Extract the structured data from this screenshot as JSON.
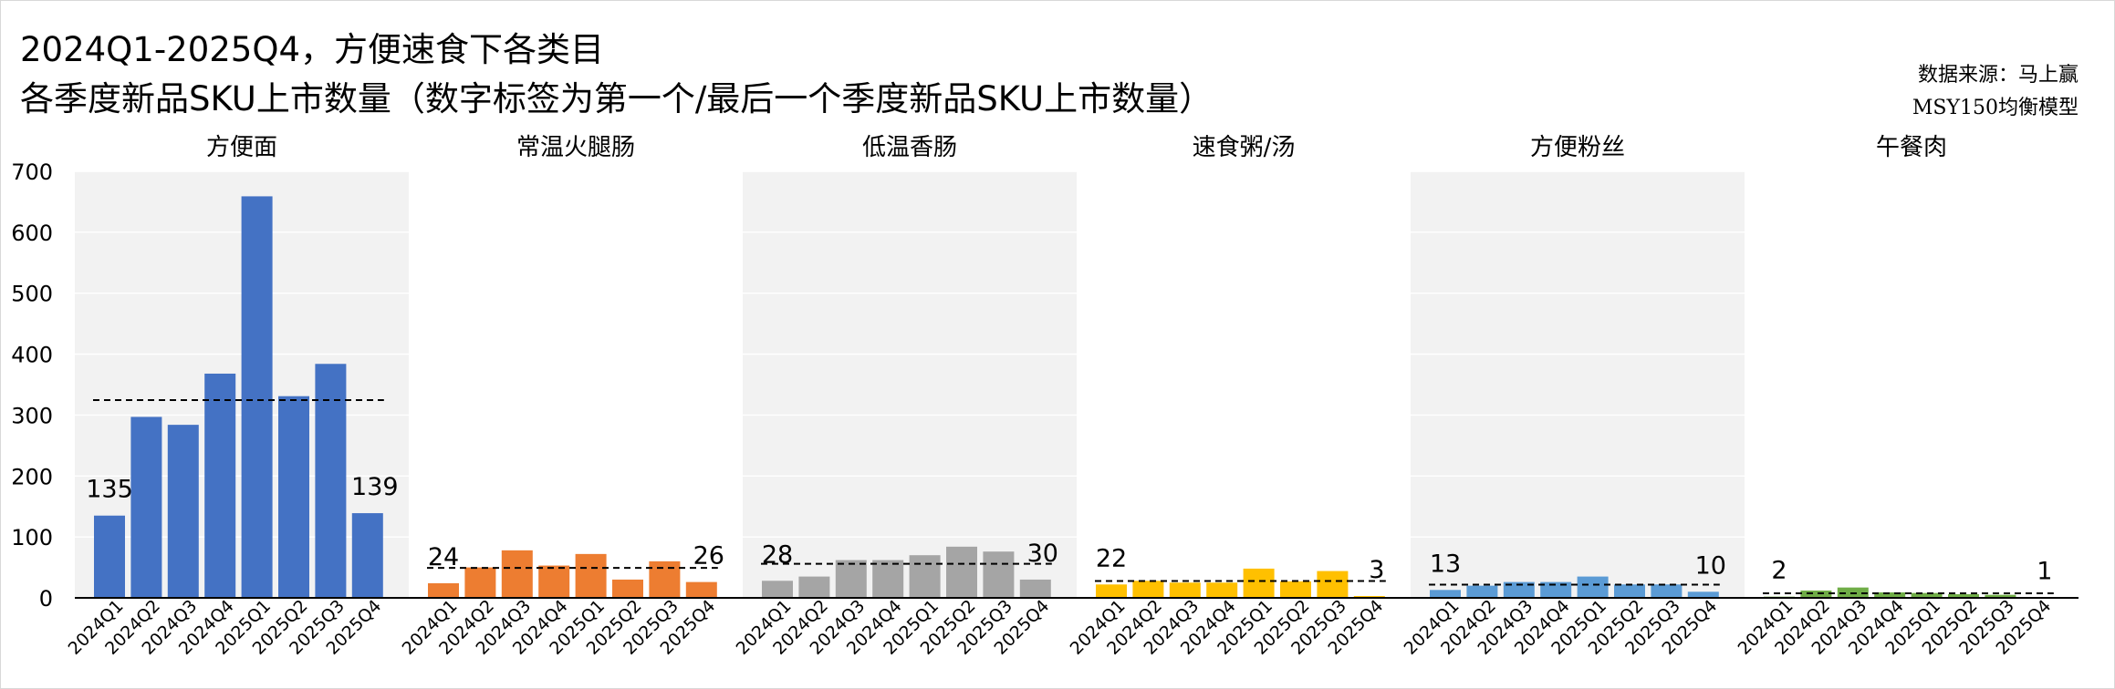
{
  "title_line1": "2024Q1-2025Q4，方便速食下各类目",
  "title_line2": "各季度新品SKU上市数量（数字标签为第一个/最后一个季度新品SKU上市数量）",
  "source_line1": "数据来源：马上赢",
  "source_line2": "MSY150均衡模型",
  "chart_data": {
    "type": "bar",
    "layout": "small-multiples",
    "ylim": [
      0,
      700
    ],
    "yticks": [
      0,
      100,
      200,
      300,
      400,
      500,
      600,
      700
    ],
    "categories": [
      "2024Q1",
      "2024Q2",
      "2024Q3",
      "2024Q4",
      "2025Q1",
      "2025Q2",
      "2025Q3",
      "2025Q4"
    ],
    "grid": true,
    "reference_line": "dashed mean line per panel",
    "series": [
      {
        "name": "方便面",
        "color": "#4472C4",
        "shaded": true,
        "values": [
          135,
          297,
          284,
          368,
          659,
          331,
          384,
          139
        ],
        "first_label": "135",
        "last_label": "139"
      },
      {
        "name": "常温火腿肠",
        "color": "#ED7D31",
        "shaded": false,
        "values": [
          24,
          50,
          78,
          53,
          72,
          30,
          60,
          26
        ],
        "first_label": "24",
        "last_label": "26"
      },
      {
        "name": "低温香肠",
        "color": "#A5A5A5",
        "shaded": true,
        "values": [
          28,
          35,
          62,
          62,
          70,
          84,
          76,
          30
        ],
        "first_label": "28",
        "last_label": "30"
      },
      {
        "name": "速食粥/汤",
        "color": "#FFC000",
        "shaded": false,
        "values": [
          22,
          28,
          25,
          25,
          48,
          27,
          44,
          3
        ],
        "first_label": "22",
        "last_label": "3"
      },
      {
        "name": "方便粉丝",
        "color": "#5B9BD5",
        "shaded": true,
        "values": [
          13,
          20,
          26,
          26,
          35,
          22,
          22,
          10
        ],
        "first_label": "13",
        "last_label": "10"
      },
      {
        "name": "午餐肉",
        "color": "#70AD47",
        "shaded": false,
        "values": [
          2,
          12,
          17,
          9,
          8,
          6,
          5,
          1
        ],
        "first_label": "2",
        "last_label": "1"
      }
    ]
  }
}
